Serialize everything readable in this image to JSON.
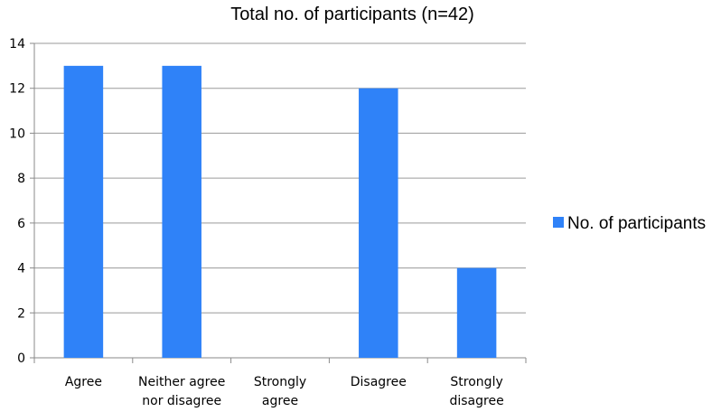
{
  "chart_data": {
    "type": "bar",
    "title": "Total no. of participants (n=42)",
    "xlabel": "",
    "ylabel": "",
    "categories": [
      [
        "Agree"
      ],
      [
        "Neither agree",
        "nor disagree"
      ],
      [
        "Strongly",
        "agree"
      ],
      [
        "Disagree"
      ],
      [
        "Strongly",
        "disagree"
      ]
    ],
    "series": [
      {
        "name": "No. of participants",
        "values": [
          13,
          13,
          0,
          12,
          4
        ],
        "color": "#2F82F8"
      }
    ],
    "ylim": [
      0,
      14
    ],
    "yticks": [
      "0",
      "2",
      "4",
      "6",
      "8",
      "10",
      "12",
      "14"
    ],
    "grid": true,
    "legend_position": "right"
  }
}
